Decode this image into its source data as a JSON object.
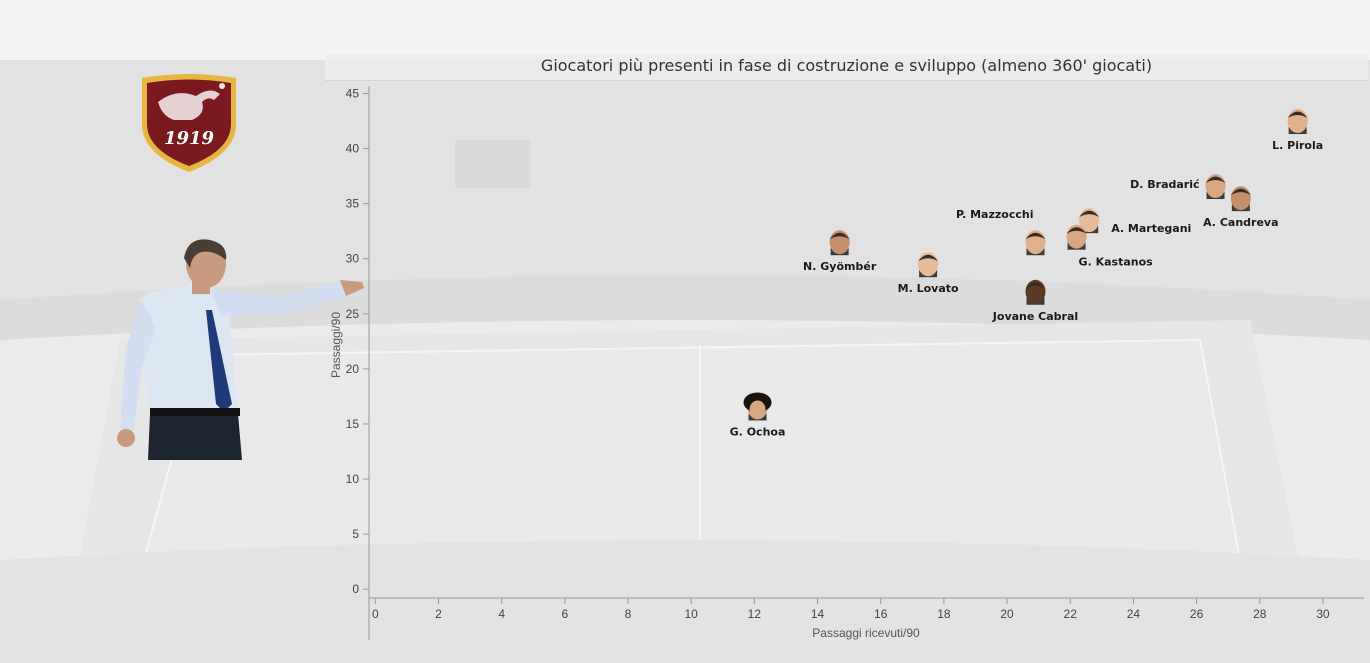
{
  "chart_data": {
    "type": "scatter",
    "title": "Giocatori più presenti in fase di costruzione e sviluppo (almeno 360' giocati)",
    "xlabel": "Passaggi ricevuti/90",
    "ylabel": "Passaggi/90",
    "xlim": [
      -0.2,
      31.3
    ],
    "ylim": [
      -0.8,
      45.5
    ],
    "xticks": [
      0,
      2,
      4,
      6,
      8,
      10,
      12,
      14,
      16,
      18,
      20,
      22,
      24,
      26,
      28,
      30
    ],
    "yticks": [
      0,
      5,
      10,
      15,
      20,
      25,
      30,
      35,
      40,
      45
    ],
    "grid": false,
    "points": [
      {
        "name": "L. Pirola",
        "x": 29.2,
        "y": 42.5,
        "label_pos": "below"
      },
      {
        "name": "D. Bradarić",
        "x": 26.6,
        "y": 36.6,
        "label_pos": "left"
      },
      {
        "name": "A. Candreva",
        "x": 27.4,
        "y": 35.5,
        "label_pos": "below"
      },
      {
        "name": "A. Martegani",
        "x": 22.6,
        "y": 33.5,
        "label_pos": "right"
      },
      {
        "name": "P. Mazzocchi",
        "x": 20.9,
        "y": 31.5,
        "label_pos": "above-left"
      },
      {
        "name": "G. Kastanos",
        "x": 22.2,
        "y": 32.0,
        "label_pos": "below-right"
      },
      {
        "name": "N. Gyömbér",
        "x": 14.7,
        "y": 31.5,
        "label_pos": "below"
      },
      {
        "name": "M. Lovato",
        "x": 17.5,
        "y": 29.5,
        "label_pos": "below"
      },
      {
        "name": "Jovane Cabral",
        "x": 20.9,
        "y": 27.0,
        "label_pos": "below"
      },
      {
        "name": "G. Ochoa",
        "x": 12.1,
        "y": 16.5,
        "label_pos": "below"
      }
    ]
  },
  "logo": {
    "text": "1919",
    "colors": {
      "shield": "#7a1a1e",
      "border": "#e6b640"
    }
  },
  "coach": {
    "icon": "coach-photo"
  }
}
